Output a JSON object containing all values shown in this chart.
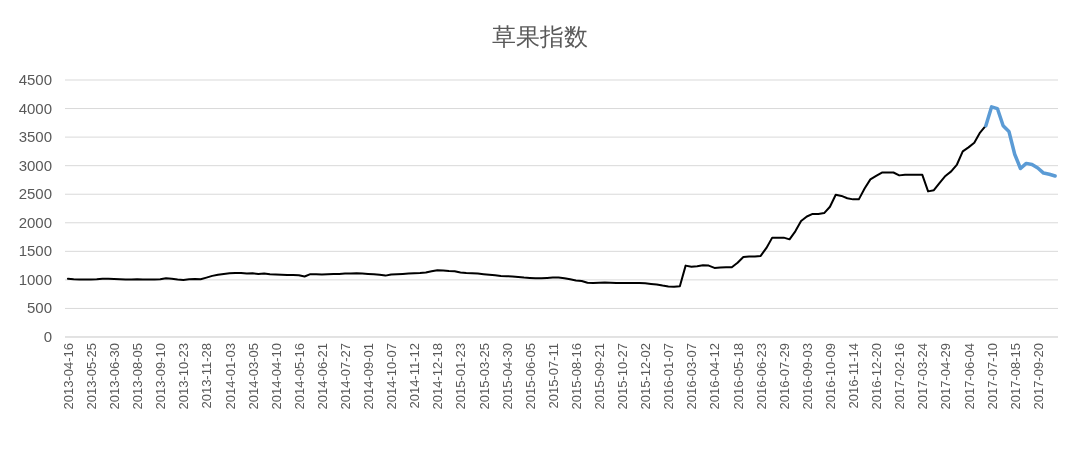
{
  "chart_data": {
    "type": "line",
    "title": "草果指数",
    "categories": [
      "2013-04-16",
      null,
      null,
      null,
      "2013-05-25",
      null,
      null,
      null,
      "2013-06-30",
      null,
      null,
      null,
      "2013-08-05",
      null,
      null,
      null,
      "2013-09-10",
      null,
      null,
      null,
      "2013-10-23",
      null,
      null,
      null,
      "2013-11-28",
      null,
      null,
      null,
      "2014-01-03",
      null,
      null,
      null,
      "2014-03-05",
      null,
      null,
      null,
      "2014-04-10",
      null,
      null,
      null,
      "2014-05-16",
      null,
      null,
      null,
      "2014-06-21",
      null,
      null,
      null,
      "2014-07-27",
      null,
      null,
      null,
      "2014-09-01",
      null,
      null,
      null,
      "2014-10-07",
      null,
      null,
      null,
      "2014-11-12",
      null,
      null,
      null,
      "2014-12-18",
      null,
      null,
      null,
      "2015-01-23",
      null,
      null,
      null,
      "2015-03-25",
      null,
      null,
      null,
      "2015-04-30",
      null,
      null,
      null,
      "2015-06-05",
      null,
      null,
      null,
      "2015-07-11",
      null,
      null,
      null,
      "2015-08-16",
      null,
      null,
      null,
      "2015-09-21",
      null,
      null,
      null,
      "2015-10-27",
      null,
      null,
      null,
      "2015-12-02",
      null,
      null,
      null,
      "2016-01-07",
      null,
      null,
      null,
      "2016-03-07",
      null,
      null,
      null,
      "2016-04-12",
      null,
      null,
      null,
      "2016-05-18",
      null,
      null,
      null,
      "2016-06-23",
      null,
      null,
      null,
      "2016-07-29",
      null,
      null,
      null,
      "2016-09-03",
      null,
      null,
      null,
      "2016-10-09",
      null,
      null,
      null,
      "2016-11-14",
      null,
      null,
      null,
      "2016-12-20",
      null,
      null,
      null,
      "2017-02-16",
      null,
      null,
      null,
      "2017-03-24",
      null,
      null,
      null,
      "2017-04-29",
      null,
      null,
      null,
      "2017-06-04",
      null,
      null,
      null,
      "2017-07-10",
      null,
      null,
      null,
      "2017-08-15",
      null,
      null,
      null,
      "2017-09-20",
      null,
      null,
      null
    ],
    "series": [
      {
        "color": "#000000",
        "values": [
          1020,
          1010,
          1005,
          1005,
          1005,
          1010,
          1020,
          1020,
          1015,
          1010,
          1005,
          1005,
          1010,
          1005,
          1005,
          1005,
          1010,
          1030,
          1020,
          1005,
          1000,
          1010,
          1015,
          1010,
          1040,
          1070,
          1090,
          1105,
          1115,
          1120,
          1120,
          1110,
          1115,
          1105,
          1110,
          1100,
          1095,
          1090,
          1085,
          1085,
          1080,
          1060,
          1100,
          1100,
          1095,
          1100,
          1105,
          1105,
          1110,
          1110,
          1115,
          1110,
          1105,
          1100,
          1090,
          1075,
          1095,
          1100,
          1105,
          1110,
          1115,
          1120,
          1130,
          1150,
          1170,
          1165,
          1155,
          1150,
          1130,
          1120,
          1115,
          1110,
          1100,
          1090,
          1080,
          1070,
          1065,
          1060,
          1050,
          1040,
          1035,
          1030,
          1030,
          1035,
          1040,
          1040,
          1030,
          1010,
          990,
          980,
          950,
          945,
          950,
          955,
          950,
          945,
          945,
          945,
          945,
          945,
          940,
          930,
          920,
          900,
          885,
          880,
          890,
          1250,
          1230,
          1240,
          1255,
          1250,
          1210,
          1215,
          1220,
          1220,
          1300,
          1400,
          1410,
          1410,
          1420,
          1560,
          1740,
          1740,
          1740,
          1710,
          1850,
          2030,
          2110,
          2155,
          2155,
          2170,
          2280,
          2490,
          2470,
          2430,
          2410,
          2410,
          2600,
          2760,
          2820,
          2880,
          2880,
          2880,
          2830,
          2840,
          2840,
          2840,
          2840,
          2550,
          2570,
          2700,
          2820,
          2900,
          3020,
          3250,
          3320,
          3400,
          3580,
          3700,
          null,
          null,
          null,
          null,
          null,
          null,
          null,
          null,
          null,
          null,
          null,
          null
        ]
      },
      {
        "color": "#5b9bd5",
        "values": [
          null,
          null,
          null,
          null,
          null,
          null,
          null,
          null,
          null,
          null,
          null,
          null,
          null,
          null,
          null,
          null,
          null,
          null,
          null,
          null,
          null,
          null,
          null,
          null,
          null,
          null,
          null,
          null,
          null,
          null,
          null,
          null,
          null,
          null,
          null,
          null,
          null,
          null,
          null,
          null,
          null,
          null,
          null,
          null,
          null,
          null,
          null,
          null,
          null,
          null,
          null,
          null,
          null,
          null,
          null,
          null,
          null,
          null,
          null,
          null,
          null,
          null,
          null,
          null,
          null,
          null,
          null,
          null,
          null,
          null,
          null,
          null,
          null,
          null,
          null,
          null,
          null,
          null,
          null,
          null,
          null,
          null,
          null,
          null,
          null,
          null,
          null,
          null,
          null,
          null,
          null,
          null,
          null,
          null,
          null,
          null,
          null,
          null,
          null,
          null,
          null,
          null,
          null,
          null,
          null,
          null,
          null,
          null,
          null,
          null,
          null,
          null,
          null,
          null,
          null,
          null,
          null,
          null,
          null,
          null,
          null,
          null,
          null,
          null,
          null,
          null,
          null,
          null,
          null,
          null,
          null,
          null,
          null,
          null,
          null,
          null,
          null,
          null,
          null,
          null,
          null,
          null,
          null,
          null,
          null,
          null,
          null,
          null,
          null,
          null,
          null,
          null,
          null,
          null,
          null,
          null,
          null,
          null,
          null,
          3700,
          4030,
          4000,
          3700,
          3600,
          3200,
          2950,
          3040,
          3020,
          2960,
          2870,
          2850,
          2820
        ]
      }
    ],
    "ylim": [
      0,
      4500
    ],
    "yticks": [
      0,
      500,
      1000,
      1500,
      2000,
      2500,
      3000,
      3500,
      4000,
      4500
    ],
    "grid": "y"
  }
}
